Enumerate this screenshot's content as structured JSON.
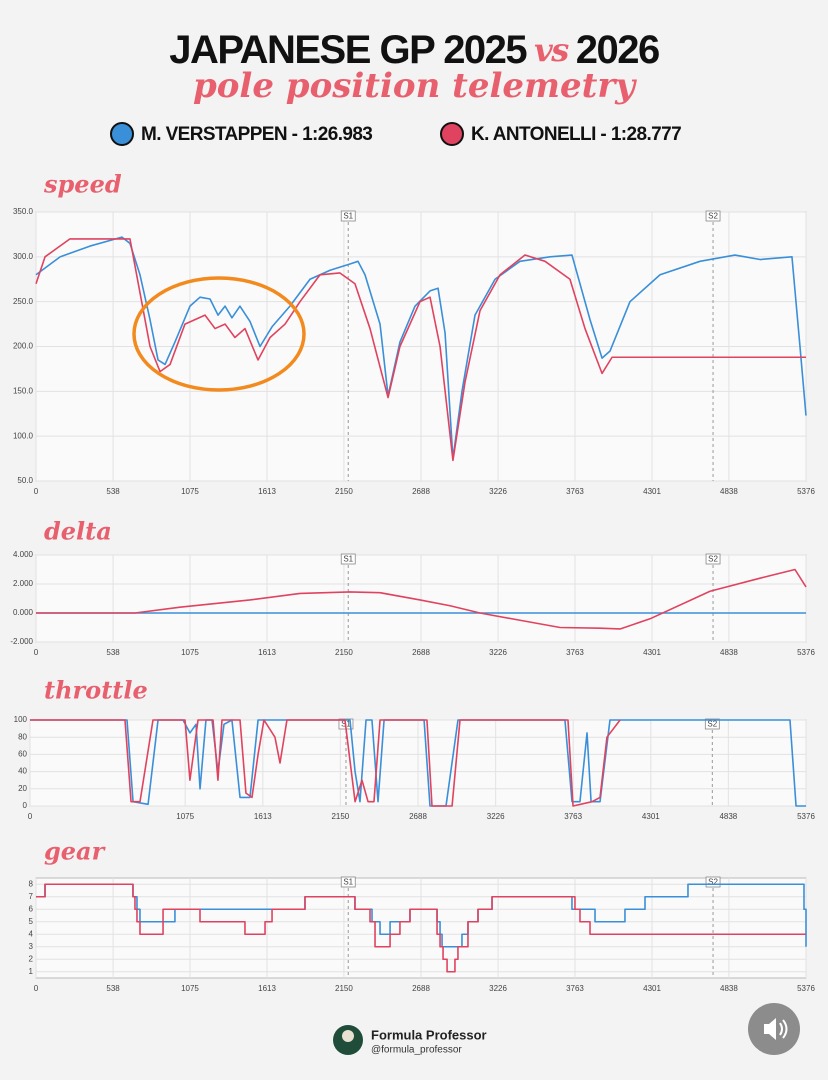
{
  "header": {
    "title_start": "JAPANESE GP 2025",
    "title_vs": "vs",
    "title_end": "2026",
    "subtitle": "pole position telemetry"
  },
  "chart_data": [
    {
      "type": "line",
      "title": "speed",
      "series": [
        {
          "name": "M. VERSTAPPEN - 1:26.983",
          "color": "#3a8fd9",
          "x": [
            0,
            168,
            377,
            600,
            656,
            726,
            796,
            852,
            901,
            970,
            1075,
            1145,
            1215,
            1271,
            1320,
            1368,
            1424,
            1494,
            1564,
            1648,
            1773,
            1913,
            2053,
            2192,
            2248,
            2297,
            2402,
            2458,
            2541,
            2646,
            2751,
            2807,
            2856,
            2911,
            2974,
            3065,
            3205,
            3379,
            3589,
            3742,
            3868,
            3952,
            4008,
            4147,
            4357,
            4636,
            4880,
            4950,
            5055,
            5278,
            5334,
            5376
          ],
          "values": [
            280,
            300,
            312,
            322,
            315,
            280,
            230,
            185,
            180,
            205,
            245,
            255,
            253,
            235,
            245,
            232,
            245,
            228,
            200,
            222,
            245,
            275,
            285,
            292,
            295,
            280,
            225,
            145,
            205,
            245,
            262,
            265,
            215,
            75,
            150,
            235,
            275,
            295,
            300,
            302,
            230,
            187,
            195,
            250,
            280,
            295,
            302,
            300,
            297,
            300,
            200,
            123
          ]
        },
        {
          "name": "K. ANTONELLI - 1:28.777",
          "color": "#e0435f",
          "x": [
            0,
            63,
            237,
            656,
            726,
            796,
            866,
            936,
            1040,
            1180,
            1250,
            1320,
            1389,
            1459,
            1550,
            1634,
            1739,
            1843,
            1983,
            2122,
            2227,
            2332,
            2458,
            2541,
            2681,
            2751,
            2821,
            2911,
            2995,
            3100,
            3240,
            3414,
            3554,
            3728,
            3833,
            3952,
            4022,
            5376
          ],
          "values": [
            270,
            300,
            320,
            320,
            260,
            200,
            172,
            180,
            225,
            235,
            220,
            225,
            210,
            220,
            185,
            210,
            225,
            250,
            280,
            282,
            270,
            220,
            143,
            200,
            250,
            255,
            200,
            73,
            160,
            240,
            280,
            302,
            295,
            275,
            220,
            170,
            188,
            188
          ]
        }
      ],
      "xlim": [
        0,
        5376
      ],
      "xticks": [
        0,
        538,
        1075,
        1613,
        2150,
        2688,
        3226,
        3763,
        4301,
        4838,
        5376
      ],
      "ylim": [
        50,
        350
      ],
      "yticks": [
        {
          "value": 50,
          "label": "50.0"
        },
        {
          "value": 100,
          "label": "100.0"
        },
        {
          "value": 150,
          "label": "150.0"
        },
        {
          "value": 200,
          "label": "200.0"
        },
        {
          "value": 250,
          "label": "250.0"
        },
        {
          "value": 300,
          "label": "300.0"
        },
        {
          "value": 350,
          "label": "350.0"
        }
      ],
      "markers": [
        {
          "x": 2180,
          "label": "S1"
        },
        {
          "x": 4727,
          "label": "S2"
        }
      ],
      "grid": true
    },
    {
      "type": "line",
      "title": "delta",
      "series": [
        {
          "color": "#3a8fd9",
          "x": [
            0,
            5376
          ],
          "values": [
            0,
            0
          ]
        },
        {
          "color": "#e0435f",
          "x": [
            0,
            691,
            1005,
            1494,
            1843,
            2192,
            2402,
            2681,
            2891,
            3100,
            3379,
            3659,
            3938,
            4078,
            4287,
            4706,
            5055,
            5299,
            5376
          ],
          "values": [
            0,
            0,
            0.4,
            0.9,
            1.35,
            1.45,
            1.4,
            0.9,
            0.5,
            0,
            -0.5,
            -1.0,
            -1.05,
            -1.1,
            -0.4,
            1.5,
            2.4,
            3.0,
            1.8
          ]
        }
      ],
      "xlim": [
        0,
        5376
      ],
      "xticks": [
        0,
        538,
        1075,
        1613,
        2150,
        2688,
        3226,
        3763,
        4301,
        4838,
        5376
      ],
      "ylim": [
        -2,
        4
      ],
      "yticks": [
        {
          "value": -2,
          "label": "-2.000"
        },
        {
          "value": 0,
          "label": "0.000"
        },
        {
          "value": 2,
          "label": "2.000"
        },
        {
          "value": 4,
          "label": "4.000"
        }
      ],
      "markers": [
        {
          "x": 2180,
          "label": "S1"
        },
        {
          "x": 4727,
          "label": "S2"
        }
      ],
      "grid": true
    },
    {
      "type": "line",
      "title": "throttle",
      "series": [
        {
          "color": "#3a8fd9",
          "x": [
            0,
            672,
            714,
            818,
            887,
            1060,
            1108,
            1150,
            1178,
            1219,
            1261,
            1302,
            1344,
            1399,
            1455,
            1524,
            1580,
            2217,
            2252,
            2286,
            2328,
            2369,
            2411,
            2453,
            2730,
            2771,
            2882,
            2965,
            3706,
            3755,
            3810,
            3859,
            3887,
            3949,
            4018,
            5265,
            5307,
            5376
          ],
          "values": [
            100,
            100,
            5,
            2,
            100,
            100,
            85,
            95,
            20,
            100,
            100,
            40,
            95,
            100,
            10,
            10,
            100,
            100,
            40,
            5,
            100,
            100,
            5,
            100,
            100,
            0,
            0,
            100,
            100,
            5,
            5,
            85,
            5,
            5,
            100,
            100,
            0,
            0
          ]
        },
        {
          "color": "#e0435f",
          "x": [
            0,
            658,
            700,
            762,
            852,
            1074,
            1108,
            1164,
            1268,
            1302,
            1330,
            1455,
            1496,
            1538,
            1580,
            1621,
            1697,
            1732,
            1780,
            2182,
            2252,
            2300,
            2342,
            2383,
            2425,
            2750,
            2785,
            2924,
            2979,
            3727,
            3762,
            3894,
            3949,
            3997,
            4088
          ],
          "values": [
            100,
            100,
            5,
            5,
            100,
            100,
            30,
            100,
            100,
            30,
            100,
            100,
            15,
            10,
            60,
            100,
            80,
            50,
            100,
            100,
            5,
            30,
            5,
            5,
            100,
            100,
            0,
            0,
            100,
            100,
            0,
            5,
            10,
            80,
            100
          ]
        }
      ],
      "xlim": [
        0,
        5376
      ],
      "xticks": [
        0,
        1075,
        1613,
        2150,
        2688,
        3226,
        3763,
        4301,
        4838,
        5376
      ],
      "ylim": [
        0,
        100
      ],
      "yticks": [
        0,
        20,
        40,
        60,
        80,
        100
      ],
      "markers": [
        {
          "x": 2189,
          "label": "S1"
        },
        {
          "x": 4727,
          "label": "S2"
        }
      ],
      "grid": true
    },
    {
      "type": "line",
      "title": "gear",
      "step": true,
      "series": [
        {
          "color": "#3a8fd9",
          "x": [
            0,
            63,
            677,
            705,
            726,
            970,
            1878,
            2227,
            2346,
            2402,
            2472,
            2611,
            2800,
            2821,
            2835,
            2974,
            3016,
            3086,
            3184,
            3742,
            3903,
            4112,
            4252,
            4552,
            5362,
            5376
          ],
          "values": [
            7,
            8,
            7,
            6,
            5,
            6,
            7,
            6,
            5,
            4,
            5,
            6,
            5,
            4,
            3,
            4,
            5,
            6,
            7,
            6,
            5,
            6,
            7,
            8,
            6,
            3
          ]
        },
        {
          "color": "#e0435f",
          "x": [
            0,
            63,
            677,
            691,
            705,
            726,
            887,
            1145,
            1459,
            1599,
            1648,
            1878,
            2227,
            2332,
            2367,
            2472,
            2541,
            2611,
            2800,
            2821,
            2842,
            2870,
            2925,
            2946,
            3016,
            3086,
            3184,
            3763,
            3798,
            3868,
            5376
          ],
          "values": [
            7,
            8,
            7,
            6,
            5,
            4,
            6,
            5,
            4,
            5,
            6,
            7,
            6,
            5,
            3,
            4,
            5,
            6,
            4,
            3,
            2,
            1,
            2,
            3,
            5,
            6,
            7,
            6,
            5,
            4,
            4
          ]
        }
      ],
      "xlim": [
        0,
        5376
      ],
      "xticks": [
        0,
        538,
        1075,
        1613,
        2150,
        2688,
        3226,
        3763,
        4301,
        4838,
        5376
      ],
      "ylim": [
        0.5,
        8.5
      ],
      "yticks": [
        1,
        2,
        3,
        4,
        5,
        6,
        7,
        8
      ],
      "markers": [
        {
          "x": 2180,
          "label": "S1"
        },
        {
          "x": 4727,
          "label": "S2"
        }
      ],
      "grid": true
    }
  ],
  "footer": {
    "brand": "Formula Professor",
    "handle": "@formula_professor"
  }
}
